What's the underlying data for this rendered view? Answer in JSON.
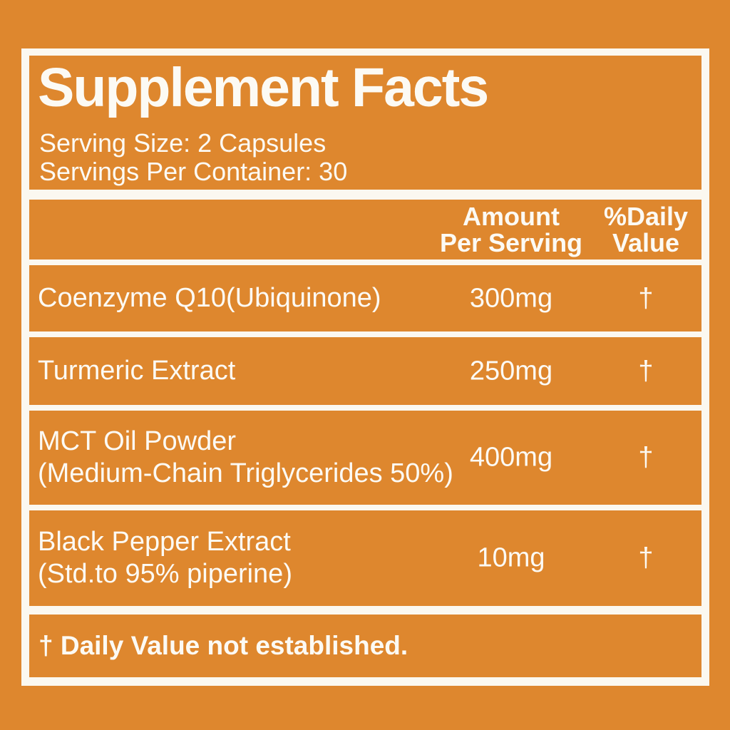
{
  "label": {
    "title": "Supplement Facts",
    "serving_size": "Serving Size: 2 Capsules",
    "servings_per_container": "Servings Per Container: 30",
    "columns": {
      "amount_line1": "Amount",
      "amount_line2": "Per Serving",
      "dv_line1": "%Daily",
      "dv_line2": "Value"
    },
    "rows": [
      {
        "name_line1": "Coenzyme Q10(Ubiquinone)",
        "name_line2": "",
        "amount": "300mg",
        "daily_value": "†"
      },
      {
        "name_line1": "Turmeric Extract",
        "name_line2": "",
        "amount": "250mg",
        "daily_value": "†"
      },
      {
        "name_line1": "MCT Oil Powder",
        "name_line2": "(Medium-Chain Triglycerides 50%)",
        "amount": "400mg",
        "daily_value": "†"
      },
      {
        "name_line1": "Black Pepper Extract",
        "name_line2": "(Std.to 95% piperine)",
        "amount": "10mg",
        "daily_value": "†"
      }
    ],
    "footnote": "† Daily Value not established.",
    "colors": {
      "background_orange": "#DE872E",
      "rule_white": "#FBF8F0",
      "text_white": "#FCFAF4"
    }
  }
}
